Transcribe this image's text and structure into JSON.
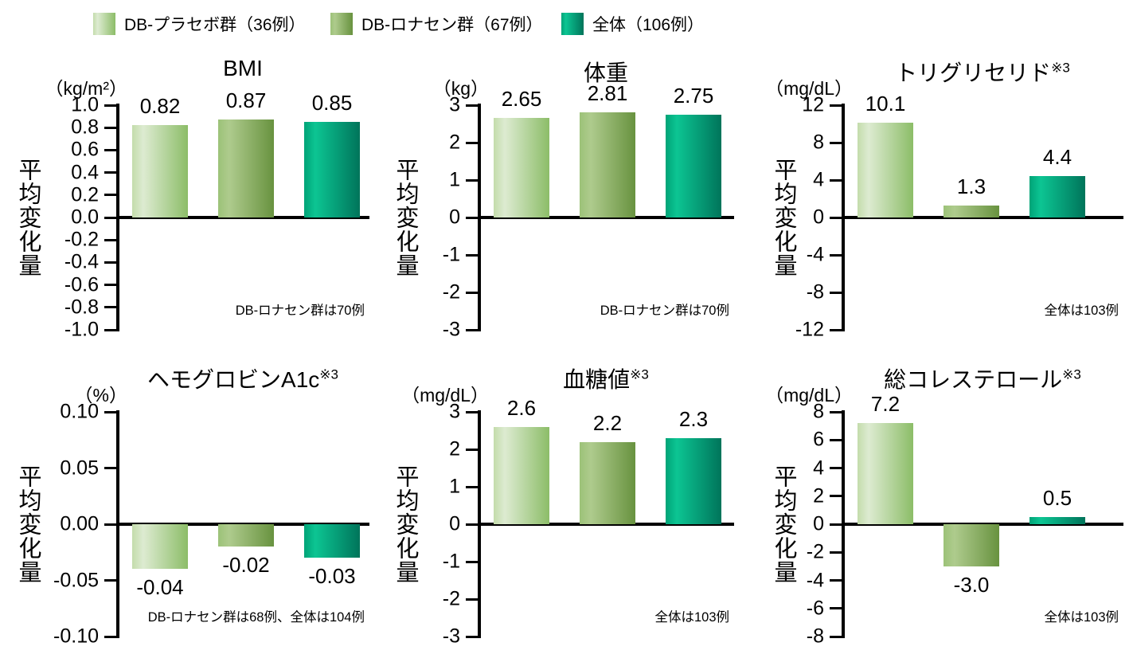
{
  "page": {
    "background": "#ffffff"
  },
  "legend": {
    "items": [
      {
        "label": "DB-プラセボ群（36例）"
      },
      {
        "label": "DB-ロナセン群（67例）"
      },
      {
        "label": "全体（106例）"
      }
    ]
  },
  "colors": {
    "axis": "#000000",
    "text": "#000000",
    "series_gradients": [
      {
        "left": "#c3dcab",
        "light": "#ddebd1",
        "right": "#8cbd68"
      },
      {
        "left": "#9cc278",
        "light": "#aecb8d",
        "right": "#68923f"
      },
      {
        "left": "#00a377",
        "light": "#0cc593",
        "right": "#00745a"
      }
    ]
  },
  "chart_data": [
    {
      "type": "bar",
      "title": "BMI",
      "title_sup": "",
      "unit": "（kg/m²）",
      "ylabel": "平均変化量",
      "ylim": [
        -1.0,
        1.0
      ],
      "tick_step": 0.2,
      "tick_decimals": 1,
      "grid": false,
      "legend_position": "top",
      "categories": [
        "DB-プラセボ群（36例）",
        "DB-ロナセン群（67例）",
        "全体（106例）"
      ],
      "values": [
        0.82,
        0.87,
        0.85
      ],
      "value_labels": [
        "0.82",
        "0.87",
        "0.85"
      ],
      "note": "DB-ロナセン群は70例"
    },
    {
      "type": "bar",
      "title": "体重",
      "title_sup": "",
      "unit": "（kg）",
      "ylabel": "平均変化量",
      "ylim": [
        -3,
        3
      ],
      "tick_step": 1,
      "tick_decimals": 0,
      "grid": false,
      "legend_position": "top",
      "categories": [
        "DB-プラセボ群（36例）",
        "DB-ロナセン群（67例）",
        "全体（106例）"
      ],
      "values": [
        2.65,
        2.81,
        2.75
      ],
      "value_labels": [
        "2.65",
        "2.81",
        "2.75"
      ],
      "note": "DB-ロナセン群は70例"
    },
    {
      "type": "bar",
      "title": "トリグリセリド",
      "title_sup": "※3",
      "unit": "（mg/dL）",
      "ylabel": "平均変化量",
      "ylim": [
        -12,
        12
      ],
      "tick_step": 4,
      "tick_decimals": 0,
      "grid": false,
      "legend_position": "top",
      "categories": [
        "DB-プラセボ群（36例）",
        "DB-ロナセン群（67例）",
        "全体（106例）"
      ],
      "values": [
        10.1,
        1.3,
        4.4
      ],
      "value_labels": [
        "10.1",
        "1.3",
        "4.4"
      ],
      "note": "全体は103例"
    },
    {
      "type": "bar",
      "title": "ヘモグロビンA1c",
      "title_sup": "※3",
      "unit": "（%）",
      "ylabel": "平均変化量",
      "ylim": [
        -0.1,
        0.1
      ],
      "tick_step": 0.05,
      "tick_decimals": 2,
      "grid": false,
      "legend_position": "top",
      "categories": [
        "DB-プラセボ群（36例）",
        "DB-ロナセン群（67例）",
        "全体（106例）"
      ],
      "values": [
        -0.04,
        -0.02,
        -0.03
      ],
      "value_labels": [
        "-0.04",
        "-0.02",
        "-0.03"
      ],
      "note": "DB-ロナセン群は68例、全体は104例"
    },
    {
      "type": "bar",
      "title": "血糖値",
      "title_sup": "※3",
      "unit": "（mg/dL）",
      "ylabel": "平均変化量",
      "ylim": [
        -3,
        3
      ],
      "tick_step": 1,
      "tick_decimals": 0,
      "grid": false,
      "legend_position": "top",
      "categories": [
        "DB-プラセボ群（36例）",
        "DB-ロナセン群（67例）",
        "全体（106例）"
      ],
      "values": [
        2.6,
        2.2,
        2.3
      ],
      "value_labels": [
        "2.6",
        "2.2",
        "2.3"
      ],
      "note": "全体は103例"
    },
    {
      "type": "bar",
      "title": "総コレステロール",
      "title_sup": "※3",
      "unit": "（mg/dL）",
      "ylabel": "平均変化量",
      "ylim": [
        -8,
        8
      ],
      "tick_step": 2,
      "tick_decimals": 0,
      "grid": false,
      "legend_position": "top",
      "categories": [
        "DB-プラセボ群（36例）",
        "DB-ロナセン群（67例）",
        "全体（106例）"
      ],
      "values": [
        7.2,
        -3.0,
        0.5
      ],
      "value_labels": [
        "7.2",
        "-3.0",
        "0.5"
      ],
      "note": "全体は103例"
    }
  ]
}
